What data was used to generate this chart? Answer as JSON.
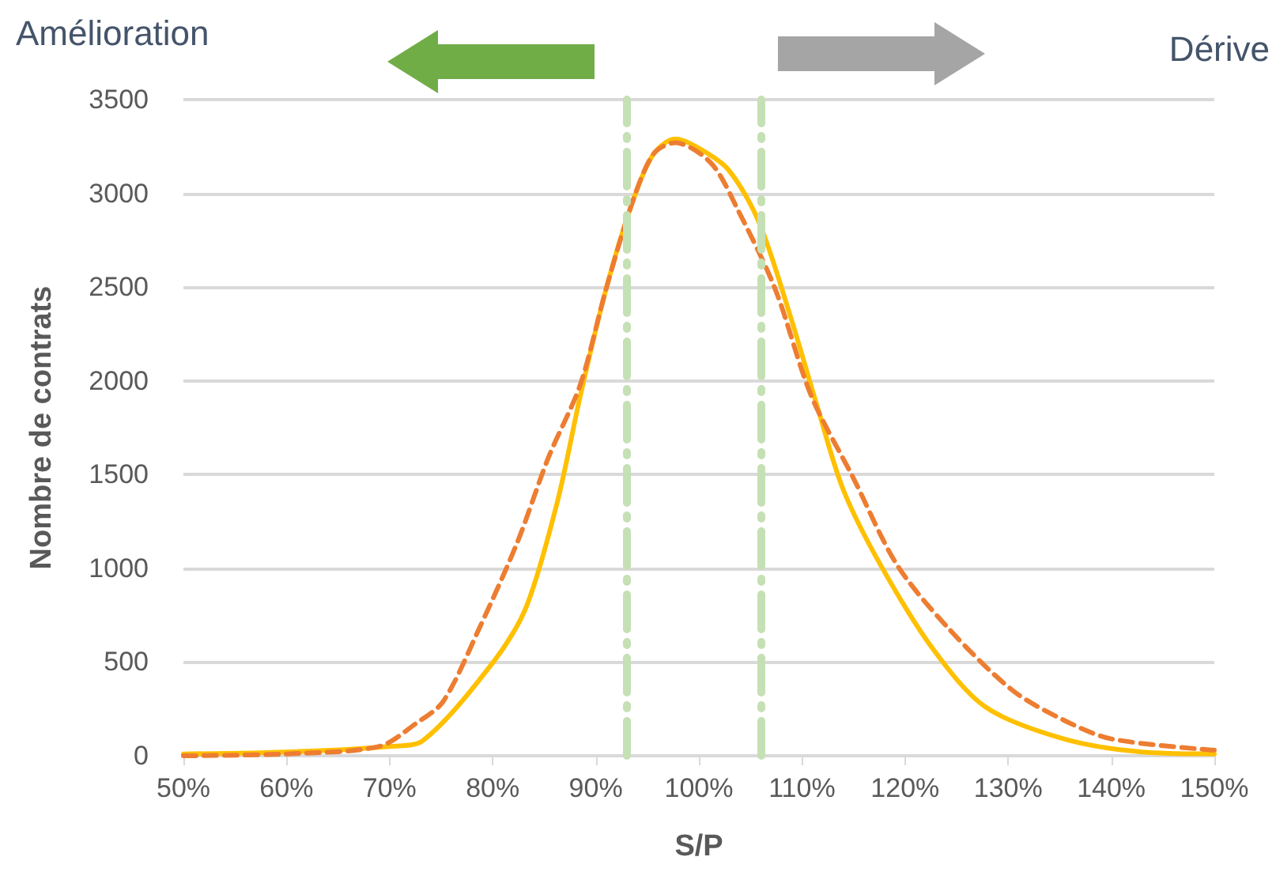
{
  "chart_data": {
    "type": "line",
    "xlabel": "S/P",
    "ylabel": "Nombre de contrats",
    "annotations": [
      "Amélioration",
      "Dérive"
    ],
    "xlim": [
      50,
      150
    ],
    "xticks": [
      {
        "value": 50,
        "label": "50%"
      },
      {
        "value": 60,
        "label": "60%"
      },
      {
        "value": 70,
        "label": "70%"
      },
      {
        "value": 80,
        "label": "80%"
      },
      {
        "value": 90,
        "label": "90%"
      },
      {
        "value": 100,
        "label": "100%"
      },
      {
        "value": 110,
        "label": "110%"
      },
      {
        "value": 120,
        "label": "120%"
      },
      {
        "value": 130,
        "label": "130%"
      },
      {
        "value": 140,
        "label": "140%"
      },
      {
        "value": 150,
        "label": "150%"
      }
    ],
    "ylim": [
      0,
      3500
    ],
    "yticks": [
      0,
      500,
      1000,
      1500,
      2000,
      2500,
      3000,
      3500
    ],
    "series": [
      {
        "color": "#ffc000",
        "line_style": "solid",
        "x": [
          50,
          60,
          70,
          73.2,
          80.2,
          83.3,
          86.3,
          88.5,
          91,
          93.6,
          95.6,
          97.7,
          99.7,
          102.8,
          105.8,
          108.9,
          111.5,
          114,
          117.6,
          122.7,
          127.8,
          135.4,
          143,
          150
        ],
        "values": [
          10,
          20,
          50,
          80,
          510,
          800,
          1360,
          1920,
          2490,
          2960,
          3210,
          3290,
          3250,
          3130,
          2850,
          2340,
          1860,
          1420,
          1020,
          570,
          260,
          90,
          20,
          10
        ]
      },
      {
        "color": "#ed7d31",
        "line_style": "dashed",
        "x": [
          50,
          60,
          69,
          72.5,
          75.2,
          78.7,
          82.4,
          85.4,
          88.5,
          91,
          93.6,
          95.6,
          97.7,
          101.2,
          103.8,
          107.4,
          110.9,
          115,
          119.2,
          124.2,
          130.4,
          135.4,
          140,
          150
        ],
        "values": [
          0,
          10,
          50,
          170,
          290,
          680,
          1140,
          1590,
          1980,
          2490,
          2960,
          3210,
          3270,
          3160,
          2910,
          2490,
          1920,
          1480,
          1020,
          680,
          350,
          190,
          90,
          30
        ]
      }
    ],
    "ref_lines": [
      {
        "axis": "x",
        "value": 93,
        "color": "#c5e0b4",
        "line_style": "dashed"
      },
      {
        "axis": "x",
        "value": 106,
        "color": "#c5e0b4",
        "line_style": "dashed"
      }
    ],
    "grid": "y",
    "marker": "none"
  }
}
